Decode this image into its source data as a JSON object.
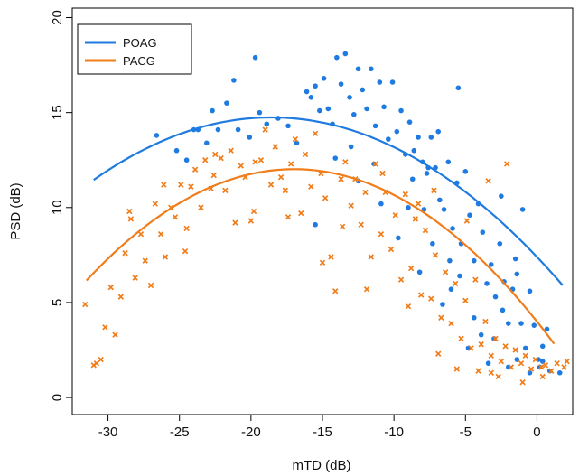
{
  "chart_data": {
    "type": "scatter",
    "xlabel": "mTD (dB)",
    "ylabel": "PSD (dB)",
    "xlim": [
      -32.5,
      2.5
    ],
    "ylim": [
      -0.9,
      20.5
    ],
    "x_ticks": [
      -30,
      -25,
      -20,
      -15,
      -10,
      -5,
      0
    ],
    "y_ticks": [
      0,
      5,
      10,
      15,
      20
    ],
    "x_tick_labels": [
      "-30",
      "-25",
      "-20",
      "-15",
      "-10",
      "-5",
      "0"
    ],
    "y_tick_labels": [
      "0",
      "5",
      "10",
      "15",
      "20"
    ],
    "legend_position": "top-left",
    "series": [
      {
        "name": "POAG",
        "marker": "dot",
        "color": "#1f7be0",
        "fit_curve": {
          "coefficients": [
            -0.0213,
            -0.7911,
            7.4
          ],
          "x_range": [
            -31,
            1.8
          ]
        },
        "points": [
          [
            -26.6,
            13.8
          ],
          [
            -25.2,
            13.0
          ],
          [
            -24.5,
            12.5
          ],
          [
            -24.0,
            14.1
          ],
          [
            -23.7,
            14.1
          ],
          [
            -23.1,
            13.4
          ],
          [
            -22.7,
            15.1
          ],
          [
            -22.3,
            14.1
          ],
          [
            -21.7,
            15.5
          ],
          [
            -21.2,
            16.7
          ],
          [
            -20.9,
            14.1
          ],
          [
            -20.1,
            13.7
          ],
          [
            -19.7,
            17.9
          ],
          [
            -19.4,
            15.0
          ],
          [
            -18.9,
            14.4
          ],
          [
            -18.1,
            14.7
          ],
          [
            -17.4,
            14.3
          ],
          [
            -16.8,
            13.4
          ],
          [
            -16.1,
            16.1
          ],
          [
            -15.8,
            15.8
          ],
          [
            -15.5,
            16.4
          ],
          [
            -15.2,
            15.1
          ],
          [
            -14.9,
            16.8
          ],
          [
            -14.6,
            15.2
          ],
          [
            -14.3,
            14.4
          ],
          [
            -14.0,
            17.9
          ],
          [
            -13.7,
            16.5
          ],
          [
            -13.4,
            18.1
          ],
          [
            -13.1,
            15.8
          ],
          [
            -12.8,
            14.9
          ],
          [
            -12.5,
            17.3
          ],
          [
            -12.2,
            16.2
          ],
          [
            -11.9,
            15.2
          ],
          [
            -11.6,
            17.3
          ],
          [
            -11.3,
            14.3
          ],
          [
            -11.0,
            16.6
          ],
          [
            -10.7,
            15.3
          ],
          [
            -10.4,
            13.6
          ],
          [
            -10.1,
            16.6
          ],
          [
            -9.8,
            14.0
          ],
          [
            -9.5,
            15.1
          ],
          [
            -9.2,
            12.8
          ],
          [
            -8.9,
            14.5
          ],
          [
            -8.6,
            13.0
          ],
          [
            -8.3,
            13.7
          ],
          [
            -8.0,
            12.4
          ],
          [
            -7.7,
            11.8
          ],
          [
            -7.4,
            13.7
          ],
          [
            -7.1,
            12.1
          ],
          [
            -6.8,
            10.4
          ],
          [
            -6.5,
            9.9
          ],
          [
            -6.2,
            12.4
          ],
          [
            -5.9,
            8.9
          ],
          [
            -5.6,
            11.3
          ],
          [
            -5.3,
            8.1
          ],
          [
            -5.0,
            11.9
          ],
          [
            -4.7,
            9.6
          ],
          [
            -4.4,
            7.2
          ],
          [
            -4.1,
            10.2
          ],
          [
            -3.8,
            8.7
          ],
          [
            -3.5,
            6.0
          ],
          [
            -3.2,
            7.0
          ],
          [
            -2.9,
            5.3
          ],
          [
            -2.6,
            8.1
          ],
          [
            -2.3,
            6.1
          ],
          [
            -2.0,
            3.9
          ],
          [
            -1.7,
            5.7
          ],
          [
            -1.4,
            6.5
          ],
          [
            -1.1,
            3.9
          ],
          [
            -0.8,
            2.6
          ],
          [
            -0.5,
            5.6
          ],
          [
            -0.2,
            3.8
          ],
          [
            0.1,
            2.0
          ],
          [
            0.4,
            2.7
          ],
          [
            0.7,
            3.6
          ],
          [
            -5.5,
            16.3
          ],
          [
            -7.6,
            12.1
          ],
          [
            -6.0,
            5.7
          ],
          [
            -3.4,
            1.8
          ],
          [
            -2.0,
            1.6
          ],
          [
            -1.4,
            2.0
          ],
          [
            -0.5,
            1.3
          ],
          [
            0.2,
            1.6
          ],
          [
            0.9,
            1.4
          ],
          [
            1.6,
            1.3
          ],
          [
            -4.8,
            2.6
          ],
          [
            -6.6,
            4.9
          ],
          [
            -8.2,
            6.6
          ],
          [
            -9.7,
            8.4
          ],
          [
            -10.9,
            10.2
          ],
          [
            -12.5,
            11.4
          ],
          [
            -14.1,
            12.6
          ],
          [
            -15.5,
            9.1
          ],
          [
            -9.0,
            10.0
          ],
          [
            -7.3,
            8.1
          ],
          [
            -6.1,
            7.2
          ],
          [
            -4.4,
            4.2
          ],
          [
            -3.0,
            3.1
          ],
          [
            -2.5,
            10.6
          ],
          [
            -1.0,
            9.9
          ],
          [
            -13.0,
            13.2
          ],
          [
            -11.4,
            12.3
          ],
          [
            -8.7,
            11.5
          ],
          [
            -7.9,
            9.9
          ],
          [
            -6.9,
            14.0
          ],
          [
            -5.4,
            6.4
          ],
          [
            -3.9,
            3.3
          ],
          [
            -2.4,
            4.6
          ],
          [
            -1.5,
            7.3
          ],
          [
            0.4,
            1.9
          ]
        ]
      },
      {
        "name": "PACG",
        "marker": "cross",
        "color": "#f07d1a",
        "fit_curve": {
          "coefficients": [
            -0.0278,
            -0.9444,
            4.0
          ],
          "x_range": [
            -31.5,
            1.2
          ]
        },
        "points": [
          [
            -31.6,
            4.9
          ],
          [
            -31.0,
            1.7
          ],
          [
            -30.8,
            1.8
          ],
          [
            -30.5,
            2.0
          ],
          [
            -30.2,
            3.7
          ],
          [
            -29.8,
            5.8
          ],
          [
            -29.5,
            3.3
          ],
          [
            -29.1,
            5.3
          ],
          [
            -28.8,
            7.6
          ],
          [
            -28.4,
            9.4
          ],
          [
            -28.1,
            6.3
          ],
          [
            -27.7,
            8.6
          ],
          [
            -27.4,
            7.2
          ],
          [
            -27.0,
            5.9
          ],
          [
            -26.7,
            10.2
          ],
          [
            -26.3,
            8.6
          ],
          [
            -26.0,
            7.4
          ],
          [
            -25.6,
            10.0
          ],
          [
            -25.3,
            9.5
          ],
          [
            -24.9,
            11.2
          ],
          [
            -24.6,
            7.7
          ],
          [
            -24.2,
            11.1
          ],
          [
            -23.9,
            12.0
          ],
          [
            -23.5,
            10.0
          ],
          [
            -23.2,
            12.5
          ],
          [
            -22.8,
            11.0
          ],
          [
            -22.5,
            12.8
          ],
          [
            -22.1,
            12.6
          ],
          [
            -21.8,
            10.9
          ],
          [
            -21.4,
            13.0
          ],
          [
            -21.1,
            9.2
          ],
          [
            -20.7,
            12.2
          ],
          [
            -20.4,
            11.6
          ],
          [
            -20.0,
            9.3
          ],
          [
            -19.7,
            12.4
          ],
          [
            -19.3,
            12.5
          ],
          [
            -19.0,
            14.1
          ],
          [
            -18.6,
            11.2
          ],
          [
            -18.3,
            13.2
          ],
          [
            -17.9,
            11.6
          ],
          [
            -17.6,
            10.9
          ],
          [
            -17.2,
            12.3
          ],
          [
            -16.9,
            13.6
          ],
          [
            -16.5,
            9.7
          ],
          [
            -16.2,
            12.8
          ],
          [
            -15.8,
            11.1
          ],
          [
            -15.5,
            13.9
          ],
          [
            -15.1,
            11.8
          ],
          [
            -14.8,
            10.5
          ],
          [
            -14.4,
            7.4
          ],
          [
            -14.1,
            5.6
          ],
          [
            -13.7,
            11.5
          ],
          [
            -13.4,
            12.4
          ],
          [
            -13.0,
            10.1
          ],
          [
            -12.7,
            11.5
          ],
          [
            -12.3,
            9.1
          ],
          [
            -12.0,
            10.8
          ],
          [
            -11.6,
            7.4
          ],
          [
            -11.3,
            12.3
          ],
          [
            -10.9,
            8.6
          ],
          [
            -10.6,
            10.8
          ],
          [
            -10.2,
            7.8
          ],
          [
            -9.9,
            9.6
          ],
          [
            -9.5,
            6.2
          ],
          [
            -9.2,
            10.7
          ],
          [
            -8.8,
            6.8
          ],
          [
            -8.5,
            9.4
          ],
          [
            -8.1,
            5.4
          ],
          [
            -7.8,
            8.8
          ],
          [
            -7.4,
            5.2
          ],
          [
            -7.1,
            7.5
          ],
          [
            -6.7,
            4.2
          ],
          [
            -6.4,
            6.6
          ],
          [
            -6.0,
            3.9
          ],
          [
            -5.7,
            6.0
          ],
          [
            -5.3,
            3.1
          ],
          [
            -5.0,
            5.1
          ],
          [
            -4.6,
            2.6
          ],
          [
            -4.3,
            6.2
          ],
          [
            -3.9,
            2.8
          ],
          [
            -3.6,
            4.0
          ],
          [
            -3.2,
            2.2
          ],
          [
            -2.9,
            3.1
          ],
          [
            -2.5,
            1.9
          ],
          [
            -2.2,
            2.7
          ],
          [
            -1.8,
            1.6
          ],
          [
            -1.5,
            2.5
          ],
          [
            -1.1,
            1.8
          ],
          [
            -0.8,
            2.2
          ],
          [
            -0.4,
            1.5
          ],
          [
            -0.1,
            2.0
          ],
          [
            0.3,
            1.6
          ],
          [
            0.6,
            1.7
          ],
          [
            1.0,
            1.4
          ],
          [
            1.4,
            1.8
          ],
          [
            1.9,
            1.6
          ],
          [
            2.1,
            1.9
          ],
          [
            -26.1,
            11.2
          ],
          [
            -28.5,
            9.8
          ],
          [
            -24.5,
            8.9
          ],
          [
            -22.6,
            11.7
          ],
          [
            -19.8,
            9.8
          ],
          [
            -17.4,
            9.5
          ],
          [
            -15.0,
            7.1
          ],
          [
            -13.6,
            9.0
          ],
          [
            -11.9,
            5.7
          ],
          [
            -9.0,
            4.8
          ],
          [
            -6.9,
            2.3
          ],
          [
            -5.6,
            1.5
          ],
          [
            -4.1,
            1.4
          ],
          [
            -2.7,
            1.1
          ],
          [
            -1.0,
            0.8
          ],
          [
            0.4,
            1.1
          ],
          [
            -3.2,
            1.3
          ],
          [
            -8.3,
            10.2
          ],
          [
            -10.8,
            11.8
          ],
          [
            -7.2,
            10.9
          ],
          [
            -4.9,
            9.3
          ],
          [
            -3.4,
            11.4
          ],
          [
            -2.1,
            12.3
          ]
        ]
      }
    ]
  }
}
